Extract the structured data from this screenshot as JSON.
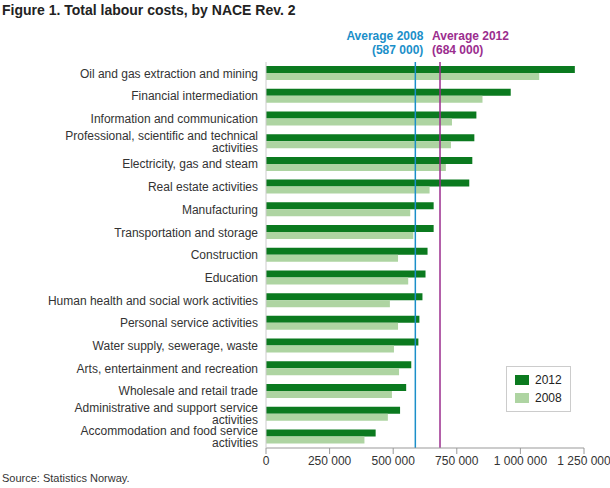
{
  "chart_data": {
    "type": "bar",
    "orientation": "horizontal",
    "title": "Figure 1. Total labour costs, by NACE Rev. 2",
    "source": "Source: Statistics Norway.",
    "categories": [
      "Oil and gas extraction and mining",
      "Financial intermediation",
      "Information and communication",
      "Professional, scientific and technical activities",
      "Electricity, gas and steam ",
      "Real estate activities",
      "Manufacturing",
      "Transportation and storage",
      "Construction",
      "Education",
      "Human health and social work activities",
      "Personal service activities",
      "Water supply, sewerage, waste",
      "Arts, entertainment and recreation",
      "Wholesale and retail trade",
      "Administrative and support service activities",
      "Accommodation and food service activities"
    ],
    "series": [
      {
        "name": "2012",
        "color": "#0b7a1f",
        "values": [
          1214000,
          962000,
          827000,
          819000,
          811000,
          799000,
          659000,
          659000,
          635000,
          627000,
          615000,
          603000,
          599000,
          571000,
          551000,
          527000,
          431000
        ]
      },
      {
        "name": "2008",
        "color": "#aed4a2",
        "values": [
          1074000,
          851000,
          731000,
          727000,
          707000,
          643000,
          567000,
          579000,
          519000,
          559000,
          487000,
          519000,
          503000,
          523000,
          495000,
          479000,
          387000
        ]
      }
    ],
    "annotations": [
      {
        "value": 587000,
        "label": "Average 2008",
        "sublabel": "(587 000)",
        "color": "#1b8fc9"
      },
      {
        "value": 684000,
        "label": "Average 2012",
        "sublabel": "(684 000)",
        "color": "#9b2d8e"
      }
    ],
    "xlim": [
      0,
      1250000
    ],
    "xticks": [
      0,
      {
        "value": 250000,
        "label": "250 000"
      },
      {
        "value": 500000,
        "label": "500 000"
      },
      {
        "value": 750000,
        "label": "750 000"
      },
      {
        "value": 1000000,
        "label": "1 000 000"
      },
      {
        "value": 1250000,
        "label": "1 250 000"
      }
    ],
    "grid": false,
    "legend": "lower right"
  }
}
